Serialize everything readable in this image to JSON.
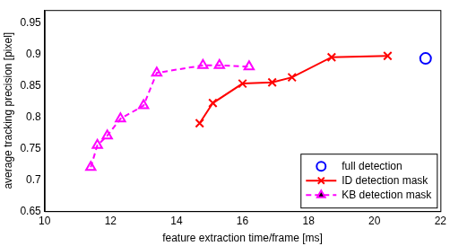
{
  "chart_data": {
    "type": "line",
    "x_label": "feature extraction time/frame [ms]",
    "y_label": "average tracking precision [pixel]",
    "xlim": [
      10,
      22
    ],
    "xticks": [
      10,
      12,
      14,
      16,
      18,
      20,
      22
    ],
    "ylim": [
      0.65,
      0.97
    ],
    "yticks": [
      0.65,
      0.7,
      0.75,
      0.8,
      0.85,
      0.9,
      0.95
    ],
    "grid": false,
    "legend": "lower right",
    "series": [
      {
        "name": "full detection",
        "color": "#0000ff",
        "marker": "circle",
        "line_style": "none",
        "x": [
          21.55
        ],
        "values": [
          0.893
        ]
      },
      {
        "name": "ID detection mask",
        "color": "#ff0000",
        "marker": "x",
        "line_style": "solid",
        "x": [
          14.7,
          15.1,
          16.0,
          16.9,
          17.5,
          18.7,
          20.4
        ],
        "values": [
          0.79,
          0.822,
          0.853,
          0.855,
          0.863,
          0.895,
          0.897
        ]
      },
      {
        "name": "KB detection mask",
        "color": "#ff00ff",
        "marker": "triangle",
        "line_style": "dashed",
        "x": [
          11.4,
          11.6,
          11.9,
          12.3,
          13.0,
          13.4,
          14.8,
          15.3,
          16.2
        ],
        "values": [
          0.72,
          0.755,
          0.77,
          0.797,
          0.818,
          0.87,
          0.882,
          0.882,
          0.88
        ]
      }
    ]
  }
}
